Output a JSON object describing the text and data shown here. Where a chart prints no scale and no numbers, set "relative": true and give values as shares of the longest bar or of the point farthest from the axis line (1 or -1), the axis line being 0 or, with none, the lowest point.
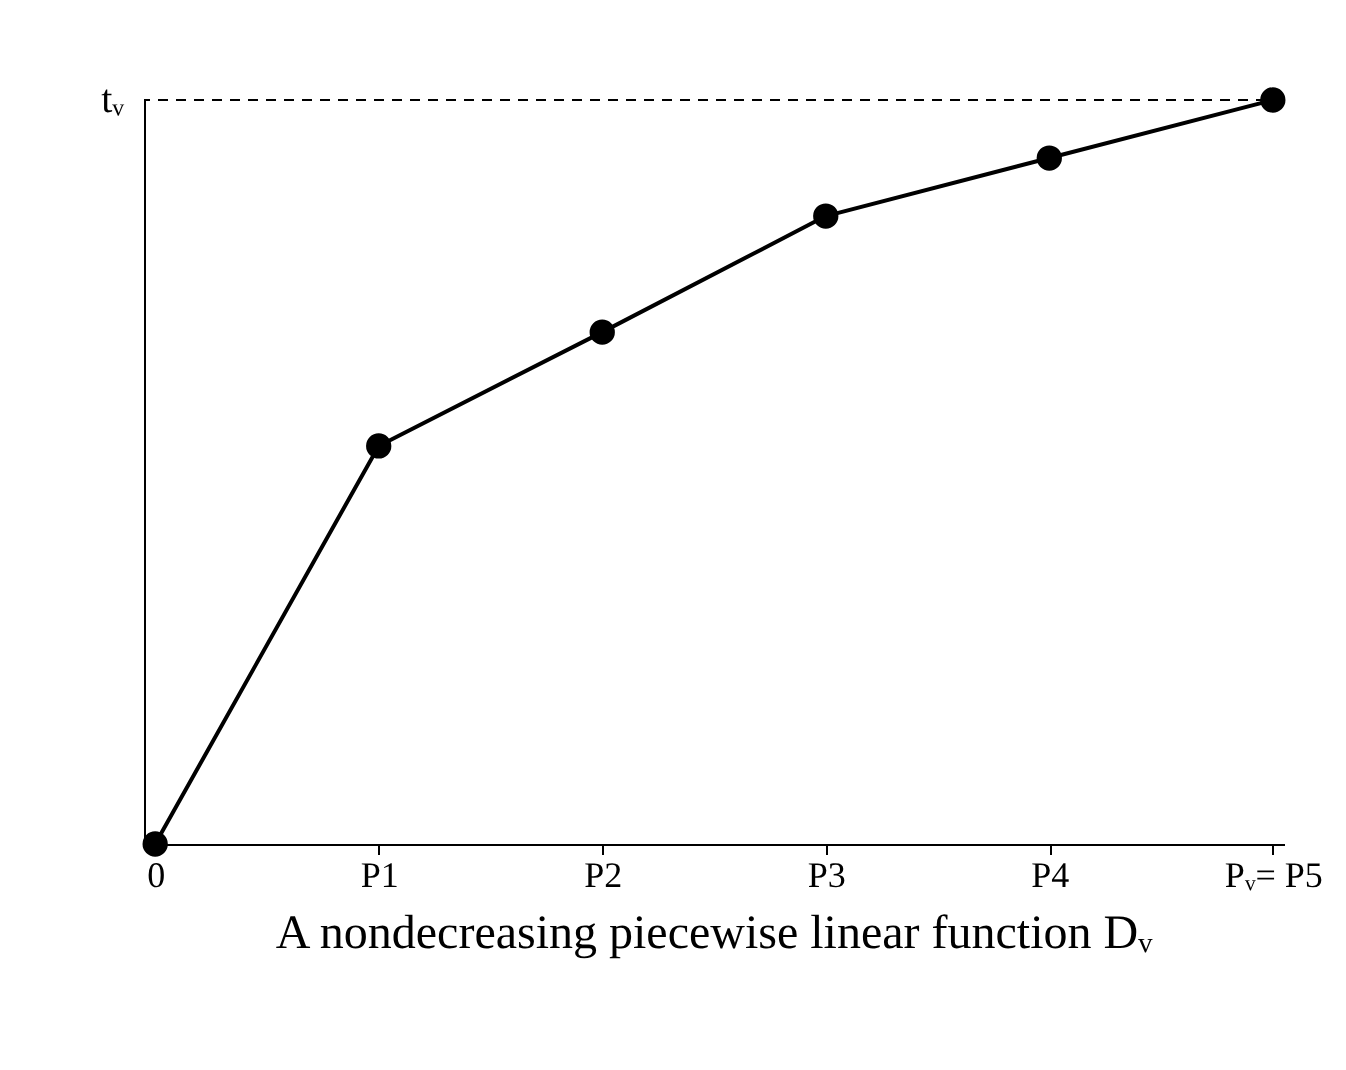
{
  "chart_data": {
    "type": "line",
    "title": "A nondecreasing piecewise linear function Dᵥ",
    "categories": [
      "0",
      "P1",
      "P2",
      "P3",
      "P4",
      "Pᵥ= P5"
    ],
    "values": [
      0,
      0.535,
      0.688,
      0.844,
      0.922,
      1
    ],
    "color": "#000000",
    "relative": true,
    "marker": "circle",
    "grid": false,
    "ref_lines": [
      {
        "axis": "y",
        "value": 1,
        "label": "tᵥ",
        "line_style": "dashed"
      }
    ]
  }
}
